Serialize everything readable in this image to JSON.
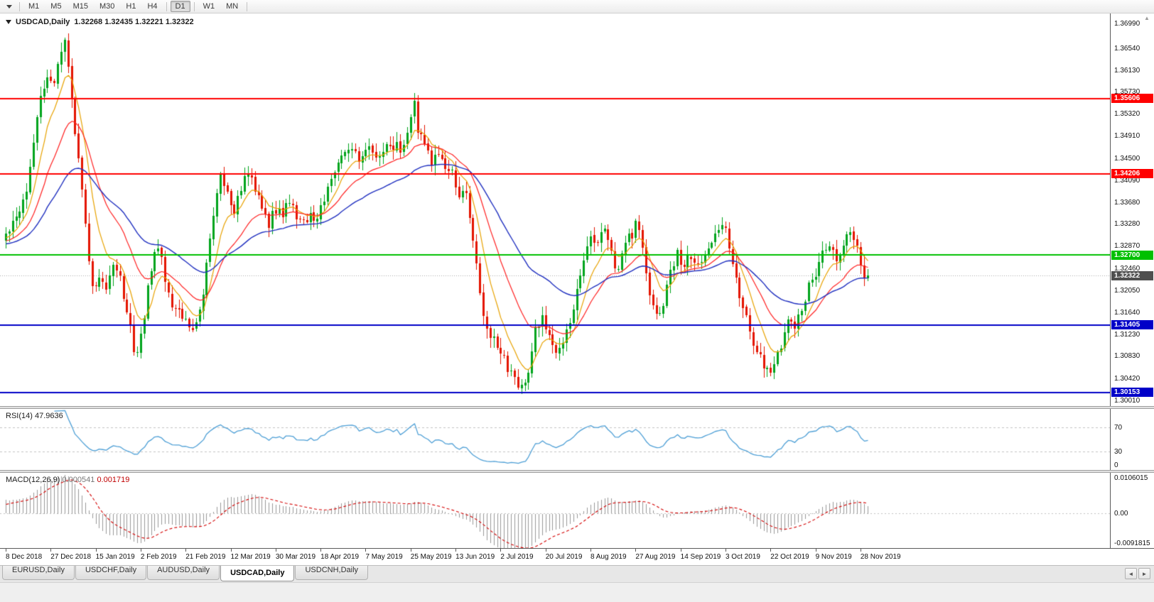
{
  "toolbar": {
    "timeframes": [
      "M1",
      "M5",
      "M15",
      "M30",
      "H1",
      "H4",
      "D1",
      "W1",
      "MN"
    ],
    "active_timeframe": "D1"
  },
  "chart_header": {
    "title": "USDCAD,Daily",
    "ohlc": "1.32268 1.32435 1.32221 1.32322"
  },
  "indicator_labels": {
    "rsi_name": "RSI(14)",
    "rsi_value": "47.9636",
    "macd_name": "MACD(12,26,9)",
    "macd_main_value": "0.000541",
    "macd_signal_value": "0.001719"
  },
  "tabs": {
    "items": [
      "EURUSD,Daily",
      "USDCHF,Daily",
      "AUDUSD,Daily",
      "USDCAD,Daily",
      "USDCNH,Daily"
    ],
    "active": "USDCAD,Daily",
    "scroll_left": "◄",
    "scroll_right": "►"
  },
  "colors": {
    "candle_up": "#00A41C",
    "candle_down": "#E41400",
    "ma_fast": "#E8A200",
    "ma_medium": "#FF2020",
    "ma_slow": "#2030C0",
    "rsi_line": "#4D9FD6",
    "macd_histogram": "#999999",
    "macd_signal": "#D40000",
    "current_price_chip": "#4F4F4F",
    "grid_dash": "#C4C4C4"
  },
  "chart_data": {
    "type": "candlestick",
    "symbol": "USDCAD",
    "timeframe": "Daily",
    "current_candle": {
      "open": 1.32268,
      "high": 1.32435,
      "low": 1.32221,
      "close": 1.32322
    },
    "price_range": [
      1.299,
      1.3718
    ],
    "num_candles": 250,
    "y_axis_ticks": [
      "1.36990",
      "1.36540",
      "1.36130",
      "1.35730",
      "1.35320",
      "1.34910",
      "1.34500",
      "1.34090",
      "1.33680",
      "1.33280",
      "1.32870",
      "1.32460",
      "1.32050",
      "1.31640",
      "1.31230",
      "1.30830",
      "1.30420",
      "1.30010"
    ],
    "x_axis_labels": [
      {
        "label": "8 Dec 2018",
        "index": 0
      },
      {
        "label": "27 Dec 2018",
        "index": 13
      },
      {
        "label": "15 Jan 2019",
        "index": 26
      },
      {
        "label": "2 Feb 2019",
        "index": 39
      },
      {
        "label": "21 Feb 2019",
        "index": 52
      },
      {
        "label": "12 Mar 2019",
        "index": 65
      },
      {
        "label": "30 Mar 2019",
        "index": 78
      },
      {
        "label": "18 Apr 2019",
        "index": 91
      },
      {
        "label": "7 May 2019",
        "index": 104
      },
      {
        "label": "25 May 2019",
        "index": 117
      },
      {
        "label": "13 Jun 2019",
        "index": 130
      },
      {
        "label": "2 Jul 2019",
        "index": 143
      },
      {
        "label": "20 Jul 2019",
        "index": 156
      },
      {
        "label": "8 Aug 2019",
        "index": 169
      },
      {
        "label": "27 Aug 2019",
        "index": 182
      },
      {
        "label": "14 Sep 2019",
        "index": 195
      },
      {
        "label": "3 Oct 2019",
        "index": 208
      },
      {
        "label": "22 Oct 2019",
        "index": 221
      },
      {
        "label": "9 Nov 2019",
        "index": 234
      },
      {
        "label": "28 Nov 2019",
        "index": 247
      }
    ],
    "horizontal_levels": [
      {
        "price": 1.35606,
        "label": "1.35606",
        "color": "#FF0000"
      },
      {
        "price": 1.34206,
        "label": "1.34206",
        "color": "#FF0000"
      },
      {
        "price": 1.327,
        "label": "1.32700",
        "color": "#00C000"
      },
      {
        "price": 1.31405,
        "label": "1.31405",
        "color": "#0000C8"
      },
      {
        "price": 1.30153,
        "label": "1.30153",
        "color": "#0000C8"
      }
    ],
    "current_price": {
      "price": 1.32322,
      "label": "1.32322"
    },
    "moving_averages": [
      {
        "name": "fast",
        "period": 8,
        "color": "#E8A200"
      },
      {
        "name": "medium",
        "period": 20,
        "color": "#FF2020"
      },
      {
        "name": "slow",
        "period": 45,
        "color": "#2030C0"
      }
    ],
    "indicators": {
      "rsi": {
        "name": "RSI",
        "period": 14,
        "value": 47.9636,
        "levels": [
          70,
          30
        ],
        "range": [
          0,
          100
        ],
        "axis_ticks": [
          {
            "label": "70",
            "value": 70
          },
          {
            "label": "30",
            "value": 30
          },
          {
            "label": "0",
            "value": 0
          }
        ]
      },
      "macd": {
        "name": "MACD",
        "fast": 12,
        "slow": 26,
        "signal": 9,
        "value": 0.000541,
        "signal_value": 0.001719,
        "range": [
          -0.0091815,
          0.0106015
        ],
        "axis_ticks": [
          {
            "label": "0.0106015",
            "value": 0.0106015
          },
          {
            "label": "0.00",
            "value": 0
          },
          {
            "label": "-0.0091815",
            "value": -0.0091815
          }
        ]
      }
    },
    "close_anchors": [
      [
        0,
        1.331
      ],
      [
        2,
        1.333
      ],
      [
        4,
        1.3345
      ],
      [
        6,
        1.339
      ],
      [
        8,
        1.348
      ],
      [
        10,
        1.356
      ],
      [
        12,
        1.36
      ],
      [
        14,
        1.358
      ],
      [
        16,
        1.3655
      ],
      [
        17,
        1.3662
      ],
      [
        18,
        1.362
      ],
      [
        20,
        1.3495
      ],
      [
        22,
        1.34
      ],
      [
        24,
        1.326
      ],
      [
        25,
        1.3205
      ],
      [
        27,
        1.3235
      ],
      [
        29,
        1.321
      ],
      [
        31,
        1.325
      ],
      [
        33,
        1.323
      ],
      [
        35,
        1.316
      ],
      [
        37,
        1.31
      ],
      [
        38,
        1.309
      ],
      [
        40,
        1.316
      ],
      [
        42,
        1.325
      ],
      [
        44,
        1.329
      ],
      [
        46,
        1.323
      ],
      [
        48,
        1.318
      ],
      [
        50,
        1.3165
      ],
      [
        52,
        1.315
      ],
      [
        54,
        1.3125
      ],
      [
        56,
        1.316
      ],
      [
        58,
        1.325
      ],
      [
        60,
        1.334
      ],
      [
        62,
        1.342
      ],
      [
        64,
        1.338
      ],
      [
        66,
        1.3345
      ],
      [
        68,
        1.3395
      ],
      [
        70,
        1.343
      ],
      [
        72,
        1.339
      ],
      [
        74,
        1.3355
      ],
      [
        76,
        1.333
      ],
      [
        78,
        1.3355
      ],
      [
        80,
        1.3345
      ],
      [
        82,
        1.337
      ],
      [
        84,
        1.3345
      ],
      [
        86,
        1.3325
      ],
      [
        88,
        1.335
      ],
      [
        90,
        1.3335
      ],
      [
        92,
        1.337
      ],
      [
        94,
        1.341
      ],
      [
        96,
        1.344
      ],
      [
        98,
        1.3455
      ],
      [
        100,
        1.347
      ],
      [
        102,
        1.3445
      ],
      [
        104,
        1.3455
      ],
      [
        106,
        1.347
      ],
      [
        108,
        1.345
      ],
      [
        110,
        1.3465
      ],
      [
        112,
        1.3475
      ],
      [
        114,
        1.3465
      ],
      [
        116,
        1.349
      ],
      [
        117,
        1.353
      ],
      [
        118,
        1.3555
      ],
      [
        119,
        1.3505
      ],
      [
        121,
        1.347
      ],
      [
        123,
        1.3445
      ],
      [
        125,
        1.346
      ],
      [
        127,
        1.3425
      ],
      [
        129,
        1.3435
      ],
      [
        131,
        1.337
      ],
      [
        133,
        1.3395
      ],
      [
        135,
        1.33
      ],
      [
        137,
        1.32
      ],
      [
        139,
        1.313
      ],
      [
        141,
        1.311
      ],
      [
        143,
        1.3095
      ],
      [
        145,
        1.306
      ],
      [
        147,
        1.304
      ],
      [
        149,
        1.3022
      ],
      [
        151,
        1.306
      ],
      [
        153,
        1.313
      ],
      [
        155,
        1.315
      ],
      [
        157,
        1.312
      ],
      [
        159,
        1.3085
      ],
      [
        161,
        1.3105
      ],
      [
        163,
        1.315
      ],
      [
        165,
        1.32
      ],
      [
        167,
        1.327
      ],
      [
        169,
        1.33
      ],
      [
        171,
        1.3285
      ],
      [
        173,
        1.332
      ],
      [
        175,
        1.327
      ],
      [
        177,
        1.324
      ],
      [
        179,
        1.329
      ],
      [
        181,
        1.331
      ],
      [
        182,
        1.333
      ],
      [
        184,
        1.329
      ],
      [
        186,
        1.32
      ],
      [
        188,
        1.3155
      ],
      [
        190,
        1.3185
      ],
      [
        192,
        1.3235
      ],
      [
        194,
        1.327
      ],
      [
        196,
        1.325
      ],
      [
        198,
        1.327
      ],
      [
        200,
        1.3245
      ],
      [
        202,
        1.327
      ],
      [
        204,
        1.3295
      ],
      [
        206,
        1.331
      ],
      [
        208,
        1.332
      ],
      [
        210,
        1.3255
      ],
      [
        212,
        1.3195
      ],
      [
        214,
        1.3155
      ],
      [
        216,
        1.311
      ],
      [
        218,
        1.308
      ],
      [
        220,
        1.3055
      ],
      [
        222,
        1.3065
      ],
      [
        224,
        1.3105
      ],
      [
        226,
        1.315
      ],
      [
        228,
        1.3135
      ],
      [
        230,
        1.317
      ],
      [
        232,
        1.321
      ],
      [
        234,
        1.324
      ],
      [
        236,
        1.327
      ],
      [
        238,
        1.329
      ],
      [
        240,
        1.3265
      ],
      [
        242,
        1.3295
      ],
      [
        244,
        1.331
      ],
      [
        246,
        1.328
      ],
      [
        247,
        1.3255
      ],
      [
        248,
        1.3225
      ],
      [
        249,
        1.32322
      ]
    ]
  }
}
